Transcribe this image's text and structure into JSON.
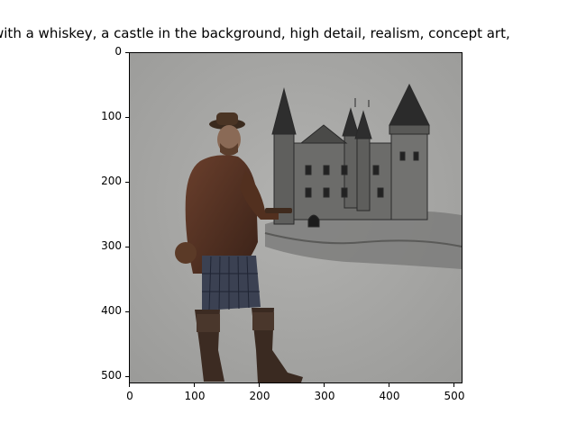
{
  "figure": {
    "title": "with a whiskey,  a castle in the background, high detail,  realism, concept art,",
    "x_ticks": [
      "0",
      "100",
      "200",
      "300",
      "400",
      "500"
    ],
    "y_ticks": [
      "0",
      "100",
      "200",
      "300",
      "400",
      "500"
    ],
    "image": {
      "description_icon": "illustration-icon"
    }
  }
}
